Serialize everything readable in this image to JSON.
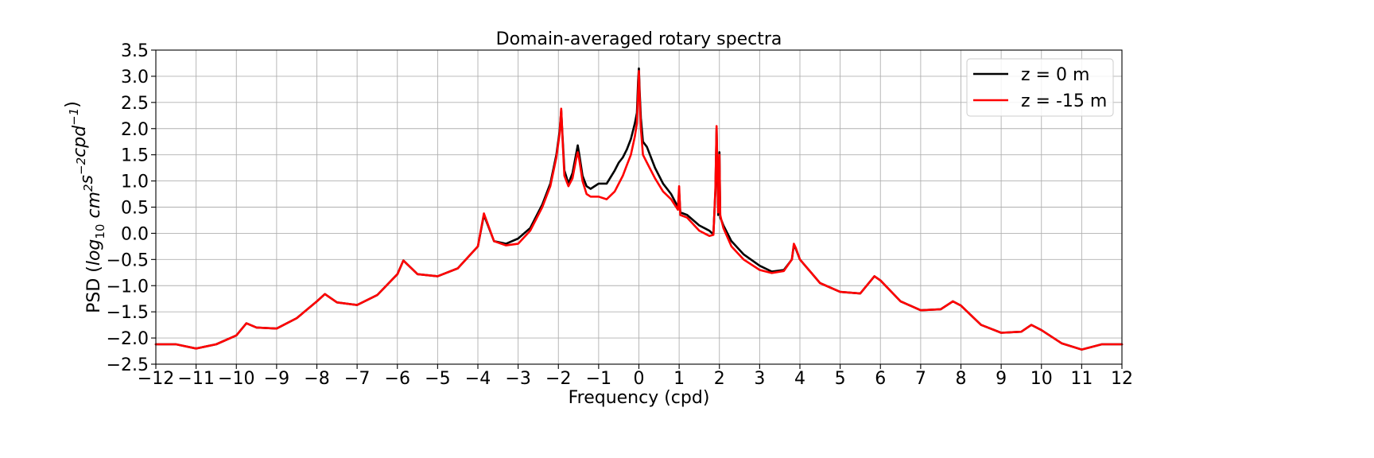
{
  "chart_data": {
    "type": "line",
    "title": "Domain-averaged rotary spectra",
    "xlabel": "Frequency (cpd)",
    "ylabel": {
      "prefix": "PSD (",
      "sub": "10",
      "italic_log": "log",
      "units": [
        {
          "text": "cm",
          "sup": "2"
        },
        {
          "text": "s",
          "sup": "−2"
        },
        {
          "text": "cpd",
          "sup": "−1"
        }
      ],
      "suffix": ")"
    },
    "xlim": [
      -12,
      12
    ],
    "ylim": [
      -2.5,
      3.5
    ],
    "xticks": [
      -12,
      -11,
      -10,
      -9,
      -8,
      -7,
      -6,
      -5,
      -4,
      -3,
      -2,
      -1,
      0,
      1,
      2,
      3,
      4,
      5,
      6,
      7,
      8,
      9,
      10,
      11,
      12
    ],
    "xtick_labels": [
      "−12",
      "−11",
      "−10",
      "−9",
      "−8",
      "−7",
      "−6",
      "−5",
      "−4",
      "−3",
      "−2",
      "−1",
      "0",
      "1",
      "2",
      "3",
      "4",
      "5",
      "6",
      "7",
      "8",
      "9",
      "10",
      "11",
      "12"
    ],
    "yticks": [
      -2.5,
      -2.0,
      -1.5,
      -1.0,
      -0.5,
      0.0,
      0.5,
      1.0,
      1.5,
      2.0,
      2.5,
      3.0,
      3.5
    ],
    "ytick_labels": [
      "−2.5",
      "−2.0",
      "−1.5",
      "−1.0",
      "−0.5",
      "0.0",
      "0.5",
      "1.0",
      "1.5",
      "2.0",
      "2.5",
      "3.0",
      "3.5"
    ],
    "grid": true,
    "legend_position": "top-right",
    "series": [
      {
        "name": "z = 0 m",
        "color": "#000000",
        "x": [
          -12,
          -11.5,
          -11,
          -10.5,
          -10,
          -9.75,
          -9.5,
          -9,
          -8.5,
          -8,
          -7.8,
          -7.5,
          -7,
          -6.5,
          -6,
          -5.85,
          -5.5,
          -5,
          -4.5,
          -4,
          -3.85,
          -3.6,
          -3.3,
          -3,
          -2.7,
          -2.4,
          -2.2,
          -2.05,
          -1.97,
          -1.93,
          -1.9,
          -1.85,
          -1.75,
          -1.65,
          -1.55,
          -1.52,
          -1.48,
          -1.4,
          -1.3,
          -1.2,
          -1.0,
          -0.8,
          -0.6,
          -0.5,
          -0.4,
          -0.3,
          -0.2,
          -0.1,
          -0.05,
          -0.02,
          0,
          0.02,
          0.05,
          0.1,
          0.2,
          0.4,
          0.6,
          0.8,
          0.97,
          1.0,
          1.03,
          1.2,
          1.5,
          1.75,
          1.85,
          1.9,
          1.93,
          1.95,
          1.97,
          2.0,
          2.02,
          2.05,
          2.1,
          2.3,
          2.6,
          3,
          3.3,
          3.6,
          3.8,
          3.85,
          3.9,
          4.0,
          4.5,
          5,
          5.5,
          5.85,
          6,
          6.5,
          7,
          7.5,
          7.8,
          8,
          8.5,
          9,
          9.5,
          9.75,
          10,
          10.5,
          11,
          11.5,
          12
        ],
        "y": [
          -2.12,
          -2.12,
          -2.2,
          -2.12,
          -1.95,
          -1.72,
          -1.8,
          -1.82,
          -1.62,
          -1.3,
          -1.16,
          -1.32,
          -1.37,
          -1.18,
          -0.78,
          -0.52,
          -0.78,
          -0.82,
          -0.67,
          -0.25,
          0.35,
          -0.15,
          -0.2,
          -0.1,
          0.1,
          0.55,
          0.95,
          1.5,
          1.95,
          2.35,
          1.9,
          1.2,
          0.95,
          1.15,
          1.55,
          1.68,
          1.5,
          1.1,
          0.9,
          0.85,
          0.95,
          0.95,
          1.2,
          1.35,
          1.45,
          1.6,
          1.8,
          2.1,
          2.3,
          2.9,
          3.15,
          2.7,
          2.2,
          1.75,
          1.65,
          1.25,
          0.95,
          0.75,
          0.5,
          0.8,
          0.4,
          0.35,
          0.15,
          0.05,
          -0.02,
          0.8,
          2.0,
          1.2,
          0.35,
          1.55,
          0.3,
          0.25,
          0.15,
          -0.15,
          -0.4,
          -0.62,
          -0.73,
          -0.7,
          -0.5,
          -0.22,
          -0.3,
          -0.5,
          -0.95,
          -1.12,
          -1.15,
          -0.82,
          -0.9,
          -1.3,
          -1.47,
          -1.45,
          -1.3,
          -1.38,
          -1.75,
          -1.9,
          -1.88,
          -1.75,
          -1.85,
          -2.1,
          -2.22,
          -2.12,
          -2.12
        ]
      },
      {
        "name": "z = -15 m",
        "color": "#ff0000",
        "x": [
          -12,
          -11.5,
          -11,
          -10.5,
          -10,
          -9.75,
          -9.5,
          -9,
          -8.5,
          -8,
          -7.8,
          -7.5,
          -7,
          -6.5,
          -6,
          -5.85,
          -5.5,
          -5,
          -4.5,
          -4,
          -3.85,
          -3.6,
          -3.3,
          -3,
          -2.7,
          -2.4,
          -2.2,
          -2.05,
          -1.97,
          -1.93,
          -1.9,
          -1.85,
          -1.75,
          -1.65,
          -1.55,
          -1.52,
          -1.48,
          -1.4,
          -1.3,
          -1.2,
          -1.0,
          -0.8,
          -0.6,
          -0.5,
          -0.4,
          -0.3,
          -0.2,
          -0.1,
          -0.05,
          -0.02,
          0,
          0.02,
          0.05,
          0.1,
          0.2,
          0.4,
          0.6,
          0.8,
          0.97,
          1.0,
          1.03,
          1.2,
          1.5,
          1.75,
          1.85,
          1.9,
          1.93,
          1.95,
          1.97,
          2.0,
          2.02,
          2.05,
          2.1,
          2.3,
          2.6,
          3,
          3.3,
          3.6,
          3.8,
          3.85,
          3.9,
          4.0,
          4.5,
          5,
          5.5,
          5.85,
          6,
          6.5,
          7,
          7.5,
          7.8,
          8,
          8.5,
          9,
          9.5,
          9.75,
          10,
          10.5,
          11,
          11.5,
          12
        ],
        "y": [
          -2.12,
          -2.12,
          -2.2,
          -2.12,
          -1.95,
          -1.72,
          -1.8,
          -1.82,
          -1.62,
          -1.3,
          -1.16,
          -1.32,
          -1.37,
          -1.18,
          -0.78,
          -0.52,
          -0.78,
          -0.82,
          -0.67,
          -0.25,
          0.38,
          -0.15,
          -0.23,
          -0.2,
          0.05,
          0.5,
          0.9,
          1.45,
          1.9,
          2.38,
          1.85,
          1.1,
          0.9,
          1.05,
          1.45,
          1.55,
          1.4,
          1.0,
          0.75,
          0.7,
          0.7,
          0.65,
          0.8,
          0.95,
          1.1,
          1.3,
          1.5,
          1.85,
          2.1,
          2.7,
          3.1,
          2.6,
          2.0,
          1.5,
          1.35,
          1.05,
          0.8,
          0.65,
          0.45,
          0.9,
          0.35,
          0.3,
          0.05,
          -0.05,
          -0.03,
          0.85,
          2.05,
          1.25,
          0.4,
          1.5,
          0.35,
          0.25,
          0.1,
          -0.25,
          -0.5,
          -0.7,
          -0.76,
          -0.72,
          -0.5,
          -0.2,
          -0.28,
          -0.5,
          -0.95,
          -1.12,
          -1.15,
          -0.82,
          -0.9,
          -1.3,
          -1.47,
          -1.45,
          -1.3,
          -1.38,
          -1.75,
          -1.9,
          -1.88,
          -1.75,
          -1.85,
          -2.1,
          -2.22,
          -2.12,
          -2.12
        ]
      }
    ]
  }
}
